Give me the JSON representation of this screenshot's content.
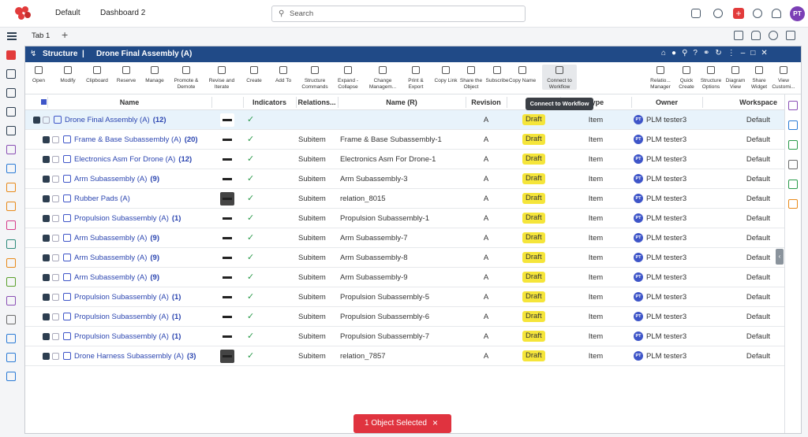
{
  "topbar": {
    "tabs": [
      "Default",
      "Dashboard 2"
    ],
    "search_placeholder": "Search",
    "avatar": "PT"
  },
  "tabs": {
    "current": "Tab 1",
    "add": "+"
  },
  "widget": {
    "title_app": "Structure",
    "title_sep": "|",
    "title_object": "Drone Final Assembly (A)"
  },
  "toolbar": {
    "left": [
      [
        "Open"
      ],
      [
        "Modify"
      ],
      [
        "Clipboard"
      ],
      [
        "Reserve"
      ],
      [
        "Manage"
      ],
      [
        "Promote &",
        "Demote"
      ],
      [
        "Revise and",
        "Iterate"
      ],
      [
        "Create"
      ],
      [
        "Add To"
      ],
      [
        "Structure",
        "Commands"
      ],
      [
        "Expand -",
        "Collapse"
      ],
      [
        "Change",
        "Managem..."
      ],
      [
        "Print &",
        "Export"
      ],
      [
        "Copy Link"
      ],
      [
        "Share the",
        "Object"
      ],
      [
        "Subscribe"
      ],
      [
        "Copy Name"
      ],
      [
        "Connect to",
        "Workflow"
      ]
    ],
    "right": [
      [
        "Relatio...",
        "Manager"
      ],
      [
        "Quick",
        "Create"
      ],
      [
        "Structure",
        "Options"
      ],
      [
        "Diagram",
        "View"
      ],
      [
        "Share",
        "Widget"
      ],
      [
        "View",
        "Customi..."
      ]
    ],
    "tooltip": "Connect to Workflow"
  },
  "table": {
    "columns": [
      "Name",
      "Indicators",
      "Relations...",
      "Name (R)",
      "Revision",
      "Type",
      "Owner",
      "Workspace"
    ],
    "rows": [
      {
        "name": "Drone Final Assembly (A)",
        "count": "(12)",
        "relation": null,
        "name_r": null,
        "revision": "A",
        "status": "Draft",
        "type": "Item",
        "owner_initials": "PT",
        "owner": "PLM tester3",
        "workspace": "Default"
      },
      {
        "name": "Frame & Base Subassembly (A)",
        "count": "(20)",
        "relation": "Subitem",
        "name_r": "Frame & Base Subassembly-1",
        "revision": "A",
        "status": "Draft",
        "type": "Item",
        "owner_initials": "PT",
        "owner": "PLM tester3",
        "workspace": "Default"
      },
      {
        "name": "Electronics Asm For Drone (A)",
        "count": "(12)",
        "relation": "Subitem",
        "name_r": "Electronics Asm For Drone-1",
        "revision": "A",
        "status": "Draft",
        "type": "Item",
        "owner_initials": "PT",
        "owner": "PLM tester3",
        "workspace": "Default"
      },
      {
        "name": "Arm Subassembly (A)",
        "count": "(9)",
        "relation": "Subitem",
        "name_r": "Arm Subassembly-3",
        "revision": "A",
        "status": "Draft",
        "type": "Item",
        "owner_initials": "PT",
        "owner": "PLM tester3",
        "workspace": "Default"
      },
      {
        "name": "Rubber Pads (A)",
        "count": null,
        "relation": "Subitem",
        "name_r": "relation_8015",
        "revision": "A",
        "status": "Draft",
        "type": "Item",
        "owner_initials": "PT",
        "owner": "PLM tester3",
        "workspace": "Default"
      },
      {
        "name": "Propulsion Subassembly (A)",
        "count": "(1)",
        "relation": "Subitem",
        "name_r": "Propulsion Subassembly-1",
        "revision": "A",
        "status": "Draft",
        "type": "Item",
        "owner_initials": "PT",
        "owner": "PLM tester3",
        "workspace": "Default"
      },
      {
        "name": "Arm Subassembly (A)",
        "count": "(9)",
        "relation": "Subitem",
        "name_r": "Arm Subassembly-7",
        "revision": "A",
        "status": "Draft",
        "type": "Item",
        "owner_initials": "PT",
        "owner": "PLM tester3",
        "workspace": "Default"
      },
      {
        "name": "Arm Subassembly (A)",
        "count": "(9)",
        "relation": "Subitem",
        "name_r": "Arm Subassembly-8",
        "revision": "A",
        "status": "Draft",
        "type": "Item",
        "owner_initials": "PT",
        "owner": "PLM tester3",
        "workspace": "Default"
      },
      {
        "name": "Arm Subassembly (A)",
        "count": "(9)",
        "relation": "Subitem",
        "name_r": "Arm Subassembly-9",
        "revision": "A",
        "status": "Draft",
        "type": "Item",
        "owner_initials": "PT",
        "owner": "PLM tester3",
        "workspace": "Default"
      },
      {
        "name": "Propulsion Subassembly (A)",
        "count": "(1)",
        "relation": "Subitem",
        "name_r": "Propulsion Subassembly-5",
        "revision": "A",
        "status": "Draft",
        "type": "Item",
        "owner_initials": "PT",
        "owner": "PLM tester3",
        "workspace": "Default"
      },
      {
        "name": "Propulsion Subassembly (A)",
        "count": "(1)",
        "relation": "Subitem",
        "name_r": "Propulsion Subassembly-6",
        "revision": "A",
        "status": "Draft",
        "type": "Item",
        "owner_initials": "PT",
        "owner": "PLM tester3",
        "workspace": "Default"
      },
      {
        "name": "Propulsion Subassembly (A)",
        "count": "(1)",
        "relation": "Subitem",
        "name_r": "Propulsion Subassembly-7",
        "revision": "A",
        "status": "Draft",
        "type": "Item",
        "owner_initials": "PT",
        "owner": "PLM tester3",
        "workspace": "Default"
      },
      {
        "name": "Drone Harness Subassembly (A)",
        "count": "(3)",
        "relation": "Subitem",
        "name_r": "relation_7857",
        "revision": "A",
        "status": "Draft",
        "type": "Item",
        "owner_initials": "PT",
        "owner": "PLM tester3",
        "workspace": "Default"
      }
    ]
  },
  "footer": {
    "selection": "1 Object Selected",
    "close": "×"
  }
}
